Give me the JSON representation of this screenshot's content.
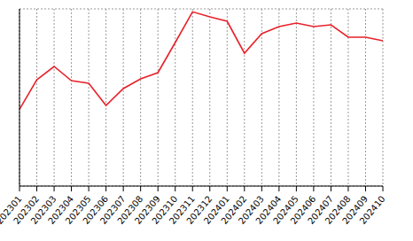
{
  "chart_data": {
    "type": "line",
    "categories": [
      "202301",
      "202302",
      "202303",
      "202304",
      "202305",
      "202306",
      "202307",
      "202308",
      "202309",
      "202310",
      "202311",
      "202312",
      "202401",
      "202402",
      "202403",
      "202404",
      "202405",
      "202406",
      "202407",
      "202408",
      "202409",
      "202410"
    ],
    "values": [
      2.6,
      3.6,
      4.05,
      3.57,
      3.48,
      2.73,
      3.3,
      3.63,
      3.84,
      4.86,
      5.9,
      5.73,
      5.58,
      4.5,
      5.16,
      5.4,
      5.52,
      5.4,
      5.46,
      5.04,
      5.04,
      4.92
    ],
    "color": "#e8212a",
    "ylim": [
      0,
      6
    ],
    "yticks": [
      0,
      1,
      2,
      3,
      4,
      5,
      6
    ],
    "grid": true,
    "tick_labels": "x",
    "marker": "none",
    "line_style": "solid"
  }
}
